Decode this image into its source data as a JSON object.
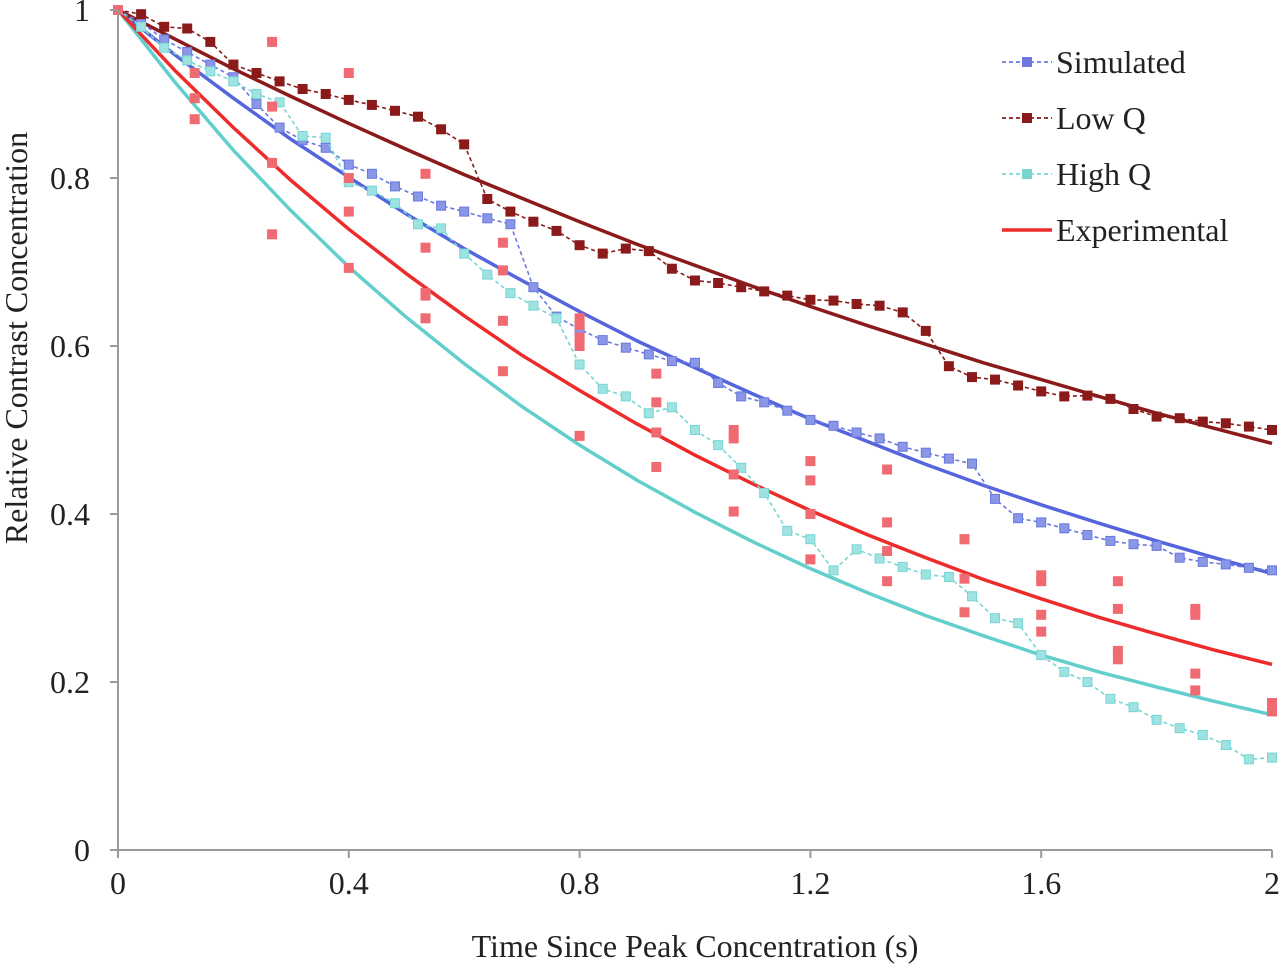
{
  "chart_data": {
    "type": "scatter",
    "title": "",
    "xlabel": "Time Since Peak Concentration (s)",
    "ylabel": "Relative Contrast Concentration",
    "xlim": [
      0,
      2
    ],
    "ylim": [
      0,
      1
    ],
    "x_ticks": [
      0,
      0.4,
      0.8,
      1.2,
      1.6,
      2
    ],
    "x_tick_labels": [
      "0",
      "0.4",
      "0.8",
      "1.2",
      "1.6",
      "2"
    ],
    "y_ticks": [
      0,
      0.2,
      0.4,
      0.6,
      0.8,
      1
    ],
    "y_tick_labels": [
      "0",
      "0.2",
      "0.4",
      "0.6",
      "0.8",
      "1"
    ],
    "grid": false,
    "legend_position": "top-right",
    "legend": [
      {
        "label": "Simulated",
        "color": "#6a78e0",
        "style": "dashed-square"
      },
      {
        "label": "Low Q",
        "color": "#8b1a1a",
        "style": "dashed-square"
      },
      {
        "label": "High Q",
        "color": "#77d6d4",
        "style": "dashed-square"
      },
      {
        "label": "Experimental",
        "color": "#ee2b2b",
        "style": "solid"
      }
    ],
    "series": [
      {
        "name": "Simulated",
        "color": "#6a78e0",
        "marker_color": "#8a96e6",
        "x": [
          0,
          0.04,
          0.08,
          0.12,
          0.16,
          0.2,
          0.24,
          0.28,
          0.32,
          0.36,
          0.4,
          0.44,
          0.48,
          0.52,
          0.56,
          0.6,
          0.64,
          0.68,
          0.72,
          0.76,
          0.8,
          0.84,
          0.88,
          0.92,
          0.96,
          1.0,
          1.04,
          1.08,
          1.12,
          1.16,
          1.2,
          1.24,
          1.28,
          1.32,
          1.36,
          1.4,
          1.44,
          1.48,
          1.52,
          1.56,
          1.6,
          1.64,
          1.68,
          1.72,
          1.76,
          1.8,
          1.84,
          1.88,
          1.92,
          1.96,
          2.0
        ],
        "y": [
          1.0,
          0.985,
          0.965,
          0.95,
          0.935,
          0.92,
          0.888,
          0.86,
          0.845,
          0.836,
          0.816,
          0.805,
          0.79,
          0.778,
          0.767,
          0.76,
          0.752,
          0.745,
          0.67,
          0.635,
          0.62,
          0.607,
          0.598,
          0.59,
          0.582,
          0.58,
          0.556,
          0.54,
          0.533,
          0.523,
          0.512,
          0.505,
          0.497,
          0.49,
          0.48,
          0.473,
          0.466,
          0.46,
          0.418,
          0.395,
          0.39,
          0.383,
          0.375,
          0.368,
          0.364,
          0.362,
          0.348,
          0.343,
          0.34,
          0.336,
          0.333
        ]
      },
      {
        "name": "Low Q",
        "color": "#8b1a1a",
        "marker_color": "#8b1a1a",
        "x": [
          0,
          0.04,
          0.08,
          0.12,
          0.16,
          0.2,
          0.24,
          0.28,
          0.32,
          0.36,
          0.4,
          0.44,
          0.48,
          0.52,
          0.56,
          0.6,
          0.64,
          0.68,
          0.72,
          0.76,
          0.8,
          0.84,
          0.88,
          0.92,
          0.96,
          1.0,
          1.04,
          1.08,
          1.12,
          1.16,
          1.2,
          1.24,
          1.28,
          1.32,
          1.36,
          1.4,
          1.44,
          1.48,
          1.52,
          1.56,
          1.6,
          1.64,
          1.68,
          1.72,
          1.76,
          1.8,
          1.84,
          1.88,
          1.92,
          1.96,
          2.0
        ],
        "y": [
          1.0,
          0.995,
          0.98,
          0.978,
          0.962,
          0.935,
          0.925,
          0.915,
          0.906,
          0.9,
          0.893,
          0.887,
          0.88,
          0.873,
          0.858,
          0.84,
          0.775,
          0.76,
          0.748,
          0.737,
          0.72,
          0.71,
          0.716,
          0.713,
          0.692,
          0.678,
          0.675,
          0.67,
          0.665,
          0.66,
          0.655,
          0.654,
          0.65,
          0.648,
          0.64,
          0.618,
          0.576,
          0.563,
          0.56,
          0.553,
          0.546,
          0.54,
          0.541,
          0.537,
          0.525,
          0.516,
          0.514,
          0.51,
          0.508,
          0.504,
          0.5
        ]
      },
      {
        "name": "High Q",
        "color": "#77d6d4",
        "marker_color": "#9ee3e1",
        "x": [
          0,
          0.04,
          0.08,
          0.12,
          0.16,
          0.2,
          0.24,
          0.28,
          0.32,
          0.36,
          0.4,
          0.44,
          0.48,
          0.52,
          0.56,
          0.6,
          0.64,
          0.68,
          0.72,
          0.76,
          0.8,
          0.84,
          0.88,
          0.92,
          0.96,
          1.0,
          1.04,
          1.08,
          1.12,
          1.16,
          1.2,
          1.24,
          1.28,
          1.32,
          1.36,
          1.4,
          1.44,
          1.48,
          1.52,
          1.56,
          1.6,
          1.64,
          1.68,
          1.72,
          1.76,
          1.8,
          1.84,
          1.88,
          1.92,
          1.96,
          2.0
        ],
        "y": [
          1.0,
          0.98,
          0.955,
          0.94,
          0.927,
          0.915,
          0.9,
          0.89,
          0.85,
          0.848,
          0.795,
          0.785,
          0.77,
          0.745,
          0.74,
          0.71,
          0.685,
          0.663,
          0.648,
          0.633,
          0.578,
          0.549,
          0.54,
          0.52,
          0.527,
          0.5,
          0.482,
          0.455,
          0.425,
          0.38,
          0.37,
          0.333,
          0.358,
          0.347,
          0.337,
          0.328,
          0.325,
          0.302,
          0.276,
          0.27,
          0.232,
          0.212,
          0.2,
          0.18,
          0.17,
          0.155,
          0.145,
          0.137,
          0.125,
          0.108,
          0.11
        ]
      },
      {
        "name": "Experimental",
        "color": "#ee2b2b",
        "marker_color": "#f06a72",
        "x": [
          0,
          0.133,
          0.133,
          0.133,
          0.267,
          0.267,
          0.267,
          0.267,
          0.4,
          0.4,
          0.4,
          0.4,
          0.533,
          0.533,
          0.533,
          0.533,
          0.533,
          0.667,
          0.667,
          0.667,
          0.667,
          0.8,
          0.8,
          0.8,
          0.8,
          0.8,
          0.933,
          0.933,
          0.933,
          0.933,
          1.067,
          1.067,
          1.067,
          1.067,
          1.2,
          1.2,
          1.2,
          1.2,
          1.333,
          1.333,
          1.333,
          1.333,
          1.467,
          1.467,
          1.467,
          1.467,
          1.6,
          1.6,
          1.6,
          1.6,
          1.733,
          1.733,
          1.733,
          1.733,
          1.867,
          1.867,
          1.867,
          1.867,
          2.0,
          2.0
        ],
        "y": [
          1.0,
          0.925,
          0.895,
          0.87,
          0.962,
          0.885,
          0.818,
          0.733,
          0.925,
          0.8,
          0.76,
          0.693,
          0.805,
          0.717,
          0.663,
          0.633,
          0.66,
          0.723,
          0.69,
          0.63,
          0.57,
          0.633,
          0.61,
          0.6,
          0.625,
          0.493,
          0.567,
          0.533,
          0.497,
          0.456,
          0.5,
          0.49,
          0.447,
          0.403,
          0.463,
          0.44,
          0.4,
          0.346,
          0.453,
          0.39,
          0.356,
          0.32,
          0.37,
          0.37,
          0.323,
          0.283,
          0.327,
          0.32,
          0.28,
          0.26,
          0.32,
          0.287,
          0.237,
          0.227,
          0.287,
          0.28,
          0.21,
          0.19,
          0.175,
          0.165
        ]
      }
    ],
    "fit_curves": [
      {
        "name": "Simulated fit",
        "color": "#5565dd",
        "x": [
          0,
          0.1,
          0.2,
          0.3,
          0.4,
          0.5,
          0.6,
          0.7,
          0.8,
          0.9,
          1.0,
          1.1,
          1.2,
          1.3,
          1.4,
          1.5,
          1.6,
          1.7,
          1.8,
          1.9,
          2.0
        ],
        "y": [
          1.0,
          0.946,
          0.895,
          0.846,
          0.801,
          0.757,
          0.716,
          0.678,
          0.641,
          0.606,
          0.574,
          0.543,
          0.513,
          0.486,
          0.459,
          0.434,
          0.411,
          0.389,
          0.368,
          0.348,
          0.329
        ]
      },
      {
        "name": "Low Q fit",
        "color": "#8b1a1a",
        "x": [
          0,
          0.1,
          0.2,
          0.3,
          0.4,
          0.5,
          0.6,
          0.7,
          0.8,
          0.9,
          1.0,
          1.1,
          1.2,
          1.3,
          1.4,
          1.5,
          1.6,
          1.7,
          1.8,
          1.9,
          2.0
        ],
        "y": [
          1.0,
          0.965,
          0.93,
          0.897,
          0.865,
          0.834,
          0.804,
          0.776,
          0.748,
          0.721,
          0.696,
          0.671,
          0.647,
          0.624,
          0.602,
          0.58,
          0.56,
          0.54,
          0.52,
          0.502,
          0.484
        ]
      },
      {
        "name": "High Q fit",
        "color": "#63cfcc",
        "x": [
          0,
          0.1,
          0.2,
          0.3,
          0.4,
          0.5,
          0.6,
          0.7,
          0.8,
          0.9,
          1.0,
          1.1,
          1.2,
          1.3,
          1.4,
          1.5,
          1.6,
          1.7,
          1.8,
          1.9,
          2.0
        ],
        "y": [
          1.0,
          0.913,
          0.833,
          0.761,
          0.694,
          0.634,
          0.579,
          0.528,
          0.482,
          0.44,
          0.402,
          0.367,
          0.335,
          0.306,
          0.279,
          0.255,
          0.232,
          0.212,
          0.194,
          0.177,
          0.161
        ]
      },
      {
        "name": "Experimental fit",
        "color": "#ee2b2b",
        "x": [
          0,
          0.1,
          0.2,
          0.3,
          0.4,
          0.5,
          0.6,
          0.7,
          0.8,
          0.9,
          1.0,
          1.1,
          1.2,
          1.3,
          1.4,
          1.5,
          1.6,
          1.7,
          1.8,
          1.9,
          2.0
        ],
        "y": [
          1.0,
          0.927,
          0.86,
          0.797,
          0.739,
          0.686,
          0.636,
          0.589,
          0.547,
          0.507,
          0.47,
          0.436,
          0.404,
          0.375,
          0.348,
          0.322,
          0.299,
          0.277,
          0.257,
          0.238,
          0.221
        ]
      }
    ]
  }
}
